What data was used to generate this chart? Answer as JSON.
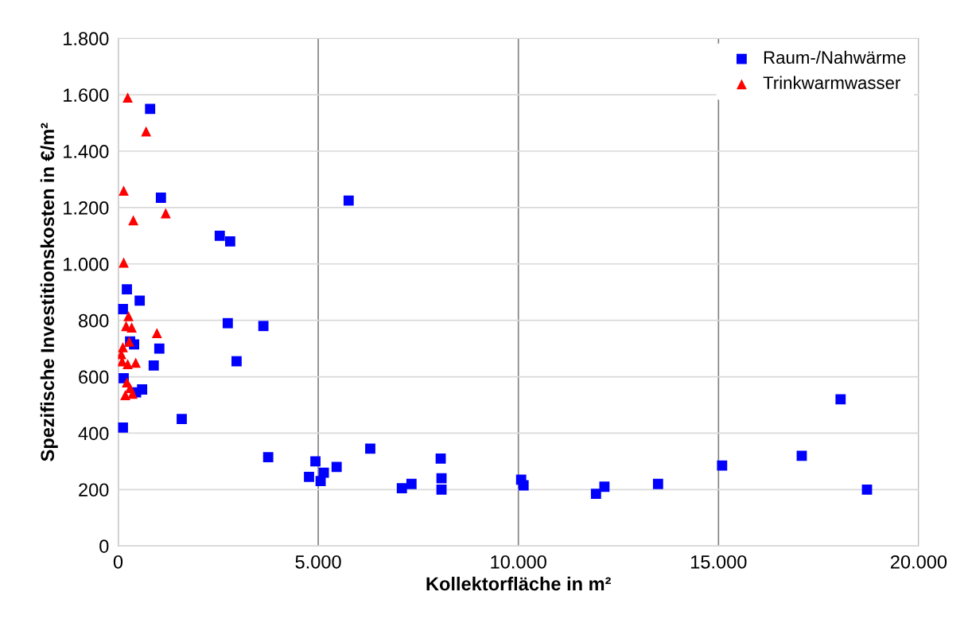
{
  "chart_data": {
    "type": "scatter",
    "xlabel": "Kollektorfläche in m²",
    "ylabel": "Spezifische Investitionskosten in €/m²",
    "xlim": [
      0,
      20000
    ],
    "xticks": [
      {
        "value": 0,
        "label": "0"
      },
      {
        "value": 5000,
        "label": "5.000"
      },
      {
        "value": 10000,
        "label": "10.000"
      },
      {
        "value": 15000,
        "label": "15.000"
      },
      {
        "value": 20000,
        "label": "20.000"
      }
    ],
    "ylim": [
      0,
      1800
    ],
    "yticks": [
      {
        "value": 0,
        "label": "0"
      },
      {
        "value": 200,
        "label": "200"
      },
      {
        "value": 400,
        "label": "400"
      },
      {
        "value": 600,
        "label": "600"
      },
      {
        "value": 800,
        "label": "800"
      },
      {
        "value": 1000,
        "label": "1.000"
      },
      {
        "value": 1200,
        "label": "1.200"
      },
      {
        "value": 1400,
        "label": "1.400"
      },
      {
        "value": 1600,
        "label": "1.600"
      },
      {
        "value": 1800,
        "label": "1.800"
      }
    ],
    "grid": true,
    "legend": "top right",
    "series": [
      {
        "name": "Raum-/Nahwärme",
        "color": "#0000ff",
        "marker": "square",
        "x": [
          800,
          1070,
          5760,
          2540,
          2800,
          220,
          540,
          120,
          2740,
          3630,
          400,
          300,
          1030,
          890,
          2960,
          140,
          600,
          450,
          1590,
          120,
          3750,
          4930,
          4770,
          5140,
          5060,
          5460,
          6300,
          8060,
          8080,
          8080,
          7090,
          7330,
          10070,
          10130,
          11940,
          12150,
          13490,
          15090,
          17080,
          18050,
          18710
        ],
        "values": [
          1550,
          1235,
          1225,
          1100,
          1080,
          910,
          870,
          840,
          790,
          780,
          715,
          725,
          700,
          640,
          655,
          595,
          555,
          545,
          450,
          420,
          315,
          300,
          245,
          260,
          230,
          280,
          345,
          310,
          240,
          200,
          205,
          220,
          235,
          215,
          185,
          210,
          220,
          285,
          320,
          520,
          200
        ]
      },
      {
        "name": "Trinkwarmwasser",
        "color": "#ff0000",
        "marker": "triangle",
        "x": [
          240,
          700,
          140,
          380,
          1190,
          140,
          260,
          340,
          200,
          970,
          120,
          80,
          240,
          440,
          100,
          220,
          300,
          180,
          360,
          280
        ],
        "values": [
          1590,
          1470,
          1260,
          1155,
          1180,
          1005,
          815,
          775,
          780,
          755,
          705,
          680,
          645,
          650,
          655,
          580,
          560,
          535,
          540,
          725
        ]
      }
    ]
  }
}
